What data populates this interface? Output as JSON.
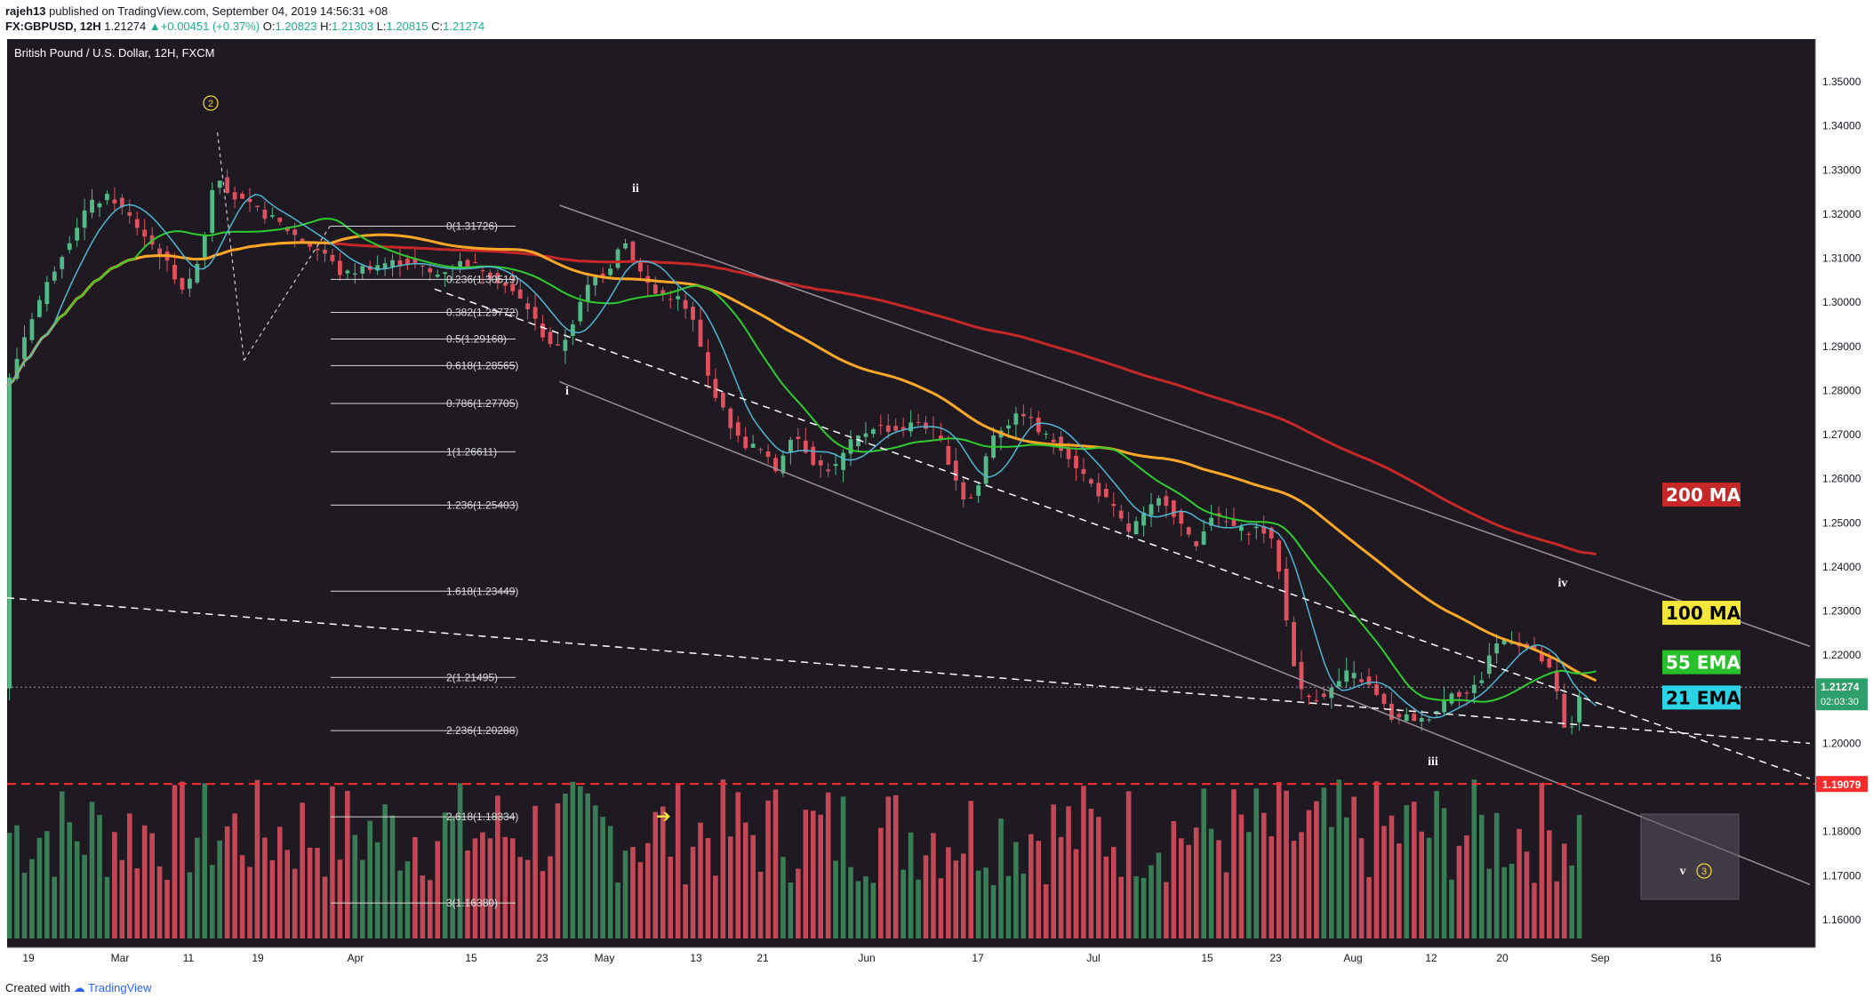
{
  "header": {
    "author": "rajeh13",
    "published_text": "published on TradingView.com, September 04, 2019 14:56:31 +08",
    "symbol": "FX:GBPUSD, 12H",
    "last": "1.21274",
    "change": "+0.00451 (+0.37%)",
    "o_label": "O:",
    "o_value": "1.20823",
    "h_label": "H:",
    "h_value": "1.21303",
    "l_label": "L:",
    "l_value": "1.20815",
    "c_label": "C:",
    "c_value": "1.21274"
  },
  "footer": {
    "created_with": "Created with",
    "brand": "TradingView"
  },
  "colors": {
    "background": "#1f1a21",
    "up": "#3e8f5f",
    "down": "#e0505f",
    "ma200": "#c62828",
    "ma100": "#ffa726",
    "ema55": "#2ecc2e",
    "ema21": "#4fb6d4",
    "support": "#ff2a2a"
  },
  "chart_data": {
    "type": "candlestick",
    "title": "British Pound / U.S. Dollar, 12H, FXCM",
    "x_ticks": [
      "19",
      "Mar",
      "11",
      "19",
      "Apr",
      "15",
      "23",
      "May",
      "13",
      "21",
      "Jun",
      "17",
      "Jul",
      "15",
      "23",
      "Aug",
      "12",
      "20",
      "Sep",
      "16"
    ],
    "y_ticks": [
      "1.35000",
      "1.34000",
      "1.33000",
      "1.32000",
      "1.31000",
      "1.30000",
      "1.29000",
      "1.28000",
      "1.27000",
      "1.26000",
      "1.25000",
      "1.24000",
      "1.23000",
      "1.22000",
      "1.21000",
      "1.20000",
      "1.19000",
      "1.18000",
      "1.17000",
      "1.16000"
    ],
    "ylim": [
      1.157,
      1.358
    ],
    "current_price": "1.21274",
    "countdown": "02:03:30",
    "support_price": "1.19079",
    "ma_labels": [
      {
        "text": "200 MA",
        "color": "#c62828",
        "text_color": "#ffffff"
      },
      {
        "text": "100 MA",
        "color": "#f5e63a",
        "text_color": "#000000"
      },
      {
        "text": "55 EMA",
        "color": "#27c02b",
        "text_color": "#ffffff"
      },
      {
        "text": "21 EMA",
        "color": "#2ad4e6",
        "text_color": "#000000"
      }
    ],
    "fib_levels": [
      {
        "label": "0(1.31726)",
        "price": 1.31726
      },
      {
        "label": "0.236(1.30519)",
        "price": 1.30519
      },
      {
        "label": "0.382(1.29772)",
        "price": 1.29772
      },
      {
        "label": "0.5(1.29168)",
        "price": 1.29168
      },
      {
        "label": "0.618(1.28565)",
        "price": 1.28565
      },
      {
        "label": "0.786(1.27705)",
        "price": 1.27705
      },
      {
        "label": "1(1.26611)",
        "price": 1.26611
      },
      {
        "label": "1.236(1.25403)",
        "price": 1.25403
      },
      {
        "label": "1.618(1.23449)",
        "price": 1.23449
      },
      {
        "label": "2(1.21495)",
        "price": 1.21495
      },
      {
        "label": "2.236(1.20288)",
        "price": 1.20288
      },
      {
        "label": "2.618(1.18334)",
        "price": 1.18334
      },
      {
        "label": "3(1.16380)",
        "price": 1.1638
      }
    ],
    "wave_labels": [
      "2",
      "ii",
      "i",
      "iii",
      "iv",
      "v",
      "3"
    ],
    "price_path": [
      [
        0,
        1.281
      ],
      [
        20,
        1.296
      ],
      [
        45,
        1.31
      ],
      [
        70,
        1.322
      ],
      [
        90,
        1.324
      ],
      [
        110,
        1.318
      ],
      [
        135,
        1.31
      ],
      [
        155,
        1.302
      ],
      [
        170,
        1.314
      ],
      [
        180,
        1.33
      ],
      [
        195,
        1.324
      ],
      [
        215,
        1.321
      ],
      [
        235,
        1.318
      ],
      [
        255,
        1.314
      ],
      [
        275,
        1.311
      ],
      [
        290,
        1.306
      ],
      [
        310,
        1.308
      ],
      [
        330,
        1.309
      ],
      [
        350,
        1.309
      ],
      [
        370,
        1.306
      ],
      [
        390,
        1.309
      ],
      [
        410,
        1.308
      ],
      [
        430,
        1.304
      ],
      [
        450,
        1.299
      ],
      [
        465,
        1.292
      ],
      [
        478,
        1.289
      ],
      [
        492,
        1.297
      ],
      [
        505,
        1.305
      ],
      [
        520,
        1.307
      ],
      [
        532,
        1.315
      ],
      [
        545,
        1.308
      ],
      [
        560,
        1.302
      ],
      [
        580,
        1.301
      ],
      [
        595,
        1.295
      ],
      [
        605,
        1.284
      ],
      [
        620,
        1.275
      ],
      [
        635,
        1.268
      ],
      [
        650,
        1.267
      ],
      [
        665,
        1.262
      ],
      [
        680,
        1.271
      ],
      [
        700,
        1.263
      ],
      [
        715,
        1.262
      ],
      [
        730,
        1.268
      ],
      [
        750,
        1.272
      ],
      [
        770,
        1.271
      ],
      [
        790,
        1.273
      ],
      [
        805,
        1.27
      ],
      [
        818,
        1.262
      ],
      [
        830,
        1.254
      ],
      [
        840,
        1.258
      ],
      [
        852,
        1.27
      ],
      [
        868,
        1.273
      ],
      [
        880,
        1.275
      ],
      [
        895,
        1.27
      ],
      [
        910,
        1.268
      ],
      [
        925,
        1.263
      ],
      [
        940,
        1.258
      ],
      [
        955,
        1.254
      ],
      [
        970,
        1.248
      ],
      [
        985,
        1.252
      ],
      [
        1000,
        1.256
      ],
      [
        1015,
        1.25
      ],
      [
        1028,
        1.244
      ],
      [
        1040,
        1.252
      ],
      [
        1055,
        1.25
      ],
      [
        1070,
        1.248
      ],
      [
        1085,
        1.249
      ],
      [
        1098,
        1.244
      ],
      [
        1108,
        1.226
      ],
      [
        1118,
        1.212
      ],
      [
        1130,
        1.21
      ],
      [
        1145,
        1.212
      ],
      [
        1160,
        1.216
      ],
      [
        1175,
        1.214
      ],
      [
        1190,
        1.209
      ],
      [
        1200,
        1.205
      ],
      [
        1212,
        1.206
      ],
      [
        1225,
        1.205
      ],
      [
        1238,
        1.208
      ],
      [
        1250,
        1.212
      ],
      [
        1262,
        1.211
      ],
      [
        1275,
        1.214
      ],
      [
        1285,
        1.222
      ],
      [
        1300,
        1.224
      ],
      [
        1312,
        1.222
      ],
      [
        1325,
        1.22
      ],
      [
        1338,
        1.215
      ],
      [
        1350,
        1.2
      ],
      [
        1358,
        1.208
      ],
      [
        1362,
        1.213
      ]
    ]
  }
}
